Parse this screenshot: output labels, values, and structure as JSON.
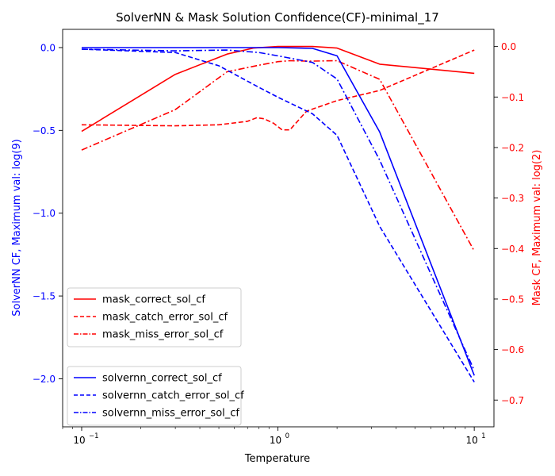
{
  "chart_data": {
    "type": "line",
    "title": "SolverNN & Mask Solution Confidence(CF)-minimal_17",
    "xlabel": "Temperature",
    "x_scale": "log",
    "xlim": [
      0.08,
      12.6
    ],
    "x_ticks": [
      0.1,
      1,
      10
    ],
    "x_tick_labels": [
      "10",
      "10",
      "10"
    ],
    "x_tick_exponents": [
      "−1",
      "0",
      "1"
    ],
    "left_axis": {
      "label": "SolverNN CF, Maximum val: log(9)",
      "color": "#0000ff",
      "ylim": [
        -2.29,
        0.11
      ],
      "ticks": [
        0,
        -0.5,
        -1,
        -1.5,
        -2
      ],
      "tick_labels": [
        "0.0",
        "−0.5",
        "−1.0",
        "−1.5",
        "−2.0"
      ]
    },
    "right_axis": {
      "label": "Mask CF, Maximum val: log(2)",
      "color": "#ff0000",
      "ylim": [
        -0.753,
        0.034
      ],
      "ticks": [
        0,
        -0.1,
        -0.2,
        -0.3,
        -0.4,
        -0.5,
        -0.6,
        -0.7
      ],
      "tick_labels": [
        "0.0",
        "−0.1",
        "−0.2",
        "−0.3",
        "−0.4",
        "−0.5",
        "−0.6",
        "−0.7"
      ]
    },
    "series_mask": [
      {
        "name": "mask_correct_sol_cf",
        "color": "#ff0000",
        "dash": "solid",
        "x": [
          0.1,
          0.3,
          0.55,
          0.75,
          1.0,
          1.5,
          2.0,
          3.3,
          10.0
        ],
        "y": [
          -0.168,
          -0.055,
          -0.015,
          -0.003,
          0.0,
          0.0,
          -0.003,
          -0.035,
          -0.053
        ]
      },
      {
        "name": "mask_catch_error_sol_cf",
        "color": "#ff0000",
        "dash": "dashed",
        "x": [
          0.1,
          0.3,
          0.5,
          0.7,
          0.78,
          0.85,
          0.95,
          1.05,
          1.15,
          1.4,
          2.0,
          3.3,
          10.0
        ],
        "y": [
          -0.155,
          -0.157,
          -0.155,
          -0.148,
          -0.141,
          -0.143,
          -0.152,
          -0.165,
          -0.165,
          -0.128,
          -0.107,
          -0.087,
          -0.007
        ]
      },
      {
        "name": "mask_miss_error_sol_cf",
        "color": "#ff0000",
        "dash": "dashdot",
        "x": [
          0.1,
          0.3,
          0.55,
          0.8,
          1.0,
          1.15,
          1.45,
          2.0,
          3.3,
          10.0
        ],
        "y": [
          -0.205,
          -0.125,
          -0.05,
          -0.037,
          -0.03,
          -0.028,
          -0.029,
          -0.028,
          -0.065,
          -0.405
        ]
      }
    ],
    "series_solvernn": [
      {
        "name": "solvernn_correct_sol_cf",
        "color": "#0000ff",
        "dash": "solid",
        "x": [
          0.1,
          0.3,
          0.55,
          0.8,
          1.0,
          1.5,
          2.0,
          3.3,
          10.0
        ],
        "y": [
          0.0,
          0.0,
          0.0,
          0.0,
          0.0,
          -0.005,
          -0.05,
          -0.51,
          -1.98
        ]
      },
      {
        "name": "solvernn_catch_error_sol_cf",
        "color": "#0000ff",
        "dash": "dashed",
        "x": [
          0.1,
          0.3,
          0.5,
          0.8,
          1.0,
          1.5,
          2.0,
          3.3,
          10.0
        ],
        "y": [
          -0.01,
          -0.03,
          -0.11,
          -0.24,
          -0.3,
          -0.4,
          -0.53,
          -1.08,
          -2.02
        ]
      },
      {
        "name": "solvernn_miss_error_sol_cf",
        "color": "#0000ff",
        "dash": "dashdot",
        "x": [
          0.1,
          0.3,
          0.55,
          0.8,
          1.0,
          1.5,
          2.0,
          3.3,
          10.0
        ],
        "y": [
          -0.01,
          -0.02,
          -0.015,
          -0.03,
          -0.05,
          -0.09,
          -0.19,
          -0.68,
          -1.95
        ]
      }
    ],
    "legend_mask_placement": "center-left",
    "legend_solvernn_placement": "lower-left",
    "grid": false
  }
}
